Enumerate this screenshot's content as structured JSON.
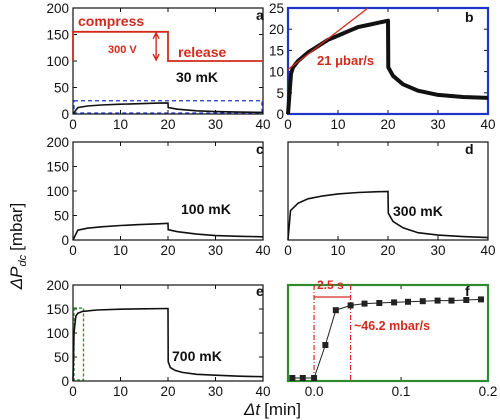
{
  "colors": {
    "data": "#111111",
    "annotation_red": "#d42a1e",
    "dashed_blue": "#1f35c8",
    "panel_b_frame": "#1f35c8",
    "panel_f_frame": "#2e8b2e",
    "dashed_green": "#2e8b2e"
  },
  "axis_titles": {
    "y": "ΔP",
    "y_sub": "dc",
    "y_unit": "[mbar]",
    "x": "Δt",
    "x_unit": "[min]"
  },
  "chart_data": [
    {
      "panel": "a",
      "type": "line",
      "label": "30 mK",
      "xlim": [
        0,
        40
      ],
      "ylim": [
        0,
        200
      ],
      "xticks": [
        "0",
        "10",
        "20",
        "30",
        "40"
      ],
      "yticks": [
        "0",
        "50",
        "100",
        "150",
        "200"
      ],
      "series": [
        {
          "x": [
            0,
            1,
            3,
            6,
            10,
            14,
            18,
            20,
            20.05,
            22,
            26,
            30,
            35,
            40
          ],
          "y": [
            0,
            12,
            15,
            17,
            18.5,
            19.5,
            20.5,
            21,
            12,
            9,
            6,
            4.5,
            3.5,
            3
          ]
        }
      ],
      "annotations": {
        "compress": "compress",
        "release": "release",
        "voltage": "300 V",
        "step_signal": {
          "x": [
            0,
            0,
            20,
            20,
            40
          ],
          "y": [
            100,
            155,
            155,
            100,
            100
          ]
        }
      },
      "dashed_box_y": [
        0,
        25
      ]
    },
    {
      "panel": "b",
      "type": "line",
      "xlim": [
        0,
        40
      ],
      "ylim": [
        0,
        25
      ],
      "xticks": [
        "0",
        "10",
        "20",
        "30",
        "40"
      ],
      "yticks": [
        "0",
        "5",
        "10",
        "15",
        "20",
        "25"
      ],
      "series": [
        {
          "x": [
            0,
            0.6,
            1,
            2,
            4,
            6,
            8,
            10,
            12,
            14,
            16,
            18,
            20,
            20.05,
            21,
            23,
            26,
            30,
            35,
            40
          ],
          "y": [
            0,
            9.5,
            11,
            12.5,
            14.5,
            16,
            17.5,
            18.5,
            19.5,
            20.5,
            21,
            21.5,
            22,
            11,
            9,
            7,
            5.5,
            4.5,
            4,
            3.8
          ]
        }
      ],
      "annotations": {
        "rate": "21 μbar/s",
        "rate_line": {
          "x": [
            0,
            16
          ],
          "y": [
            10.5,
            25
          ]
        }
      }
    },
    {
      "panel": "c",
      "type": "line",
      "label": "100 mK",
      "xlim": [
        0,
        40
      ],
      "ylim": [
        0,
        200
      ],
      "xticks": [
        "0",
        "10",
        "20",
        "30",
        "40"
      ],
      "yticks": [
        "0",
        "50",
        "100",
        "150",
        "200"
      ],
      "series": [
        {
          "x": [
            0,
            1,
            3,
            6,
            10,
            14,
            18,
            20,
            20.05,
            22,
            26,
            30,
            35,
            40
          ],
          "y": [
            0,
            20,
            24,
            27,
            29.5,
            31.5,
            33,
            34,
            21,
            17,
            12,
            9,
            7.5,
            6.5
          ]
        }
      ]
    },
    {
      "panel": "d",
      "type": "line",
      "label": "300 mK",
      "xlim": [
        0,
        40
      ],
      "ylim": [
        0,
        200
      ],
      "xticks": [
        "0",
        "10",
        "20",
        "30",
        "40"
      ],
      "yticks": [],
      "series": [
        {
          "x": [
            0,
            0.5,
            2,
            4,
            7,
            10,
            14,
            18,
            20,
            20.05,
            21,
            23,
            26,
            30,
            35,
            40
          ],
          "y": [
            0,
            60,
            75,
            84,
            90,
            94,
            97,
            98.5,
            99,
            55,
            38,
            25,
            15,
            10,
            7,
            5
          ]
        }
      ]
    },
    {
      "panel": "e",
      "type": "line",
      "label": "700 mK",
      "xlim": [
        0,
        40
      ],
      "ylim": [
        0,
        200
      ],
      "xticks": [
        "0",
        "10",
        "20",
        "30",
        "40"
      ],
      "yticks": [
        "0",
        "50",
        "100",
        "150",
        "200"
      ],
      "series": [
        {
          "x": [
            0,
            0.2,
            0.6,
            1,
            2,
            5,
            10,
            15,
            20,
            20.05,
            20.5,
            21.5,
            23,
            26,
            30,
            35,
            40
          ],
          "y": [
            0,
            100,
            135,
            141,
            145,
            148,
            149.5,
            150.5,
            151,
            40,
            28,
            22,
            18,
            14,
            12,
            10,
            9
          ]
        }
      ],
      "dashed_box": {
        "x": [
          0,
          2
        ],
        "y": [
          0,
          152
        ]
      }
    },
    {
      "panel": "f",
      "type": "scatter",
      "xlim": [
        -0.03,
        0.2
      ],
      "ylim": [
        0,
        160
      ],
      "xticks": [
        "0.0",
        "0.1",
        "0.2"
      ],
      "yticks": [],
      "series": [
        {
          "x": [
            -0.025,
            -0.013,
            0.0,
            0.013,
            0.025,
            0.042,
            0.058,
            0.075,
            0.092,
            0.108,
            0.125,
            0.142,
            0.158,
            0.175,
            0.192
          ],
          "y": [
            5,
            5,
            5,
            60,
            118,
            126,
            129,
            130,
            131,
            132,
            133,
            134,
            134,
            135,
            136
          ]
        }
      ],
      "annotations": {
        "duration": "2.5 s",
        "rate": "~46.2 mbar/s",
        "vlines_x": [
          0.0,
          0.042
        ],
        "hline_y": 140
      }
    }
  ]
}
